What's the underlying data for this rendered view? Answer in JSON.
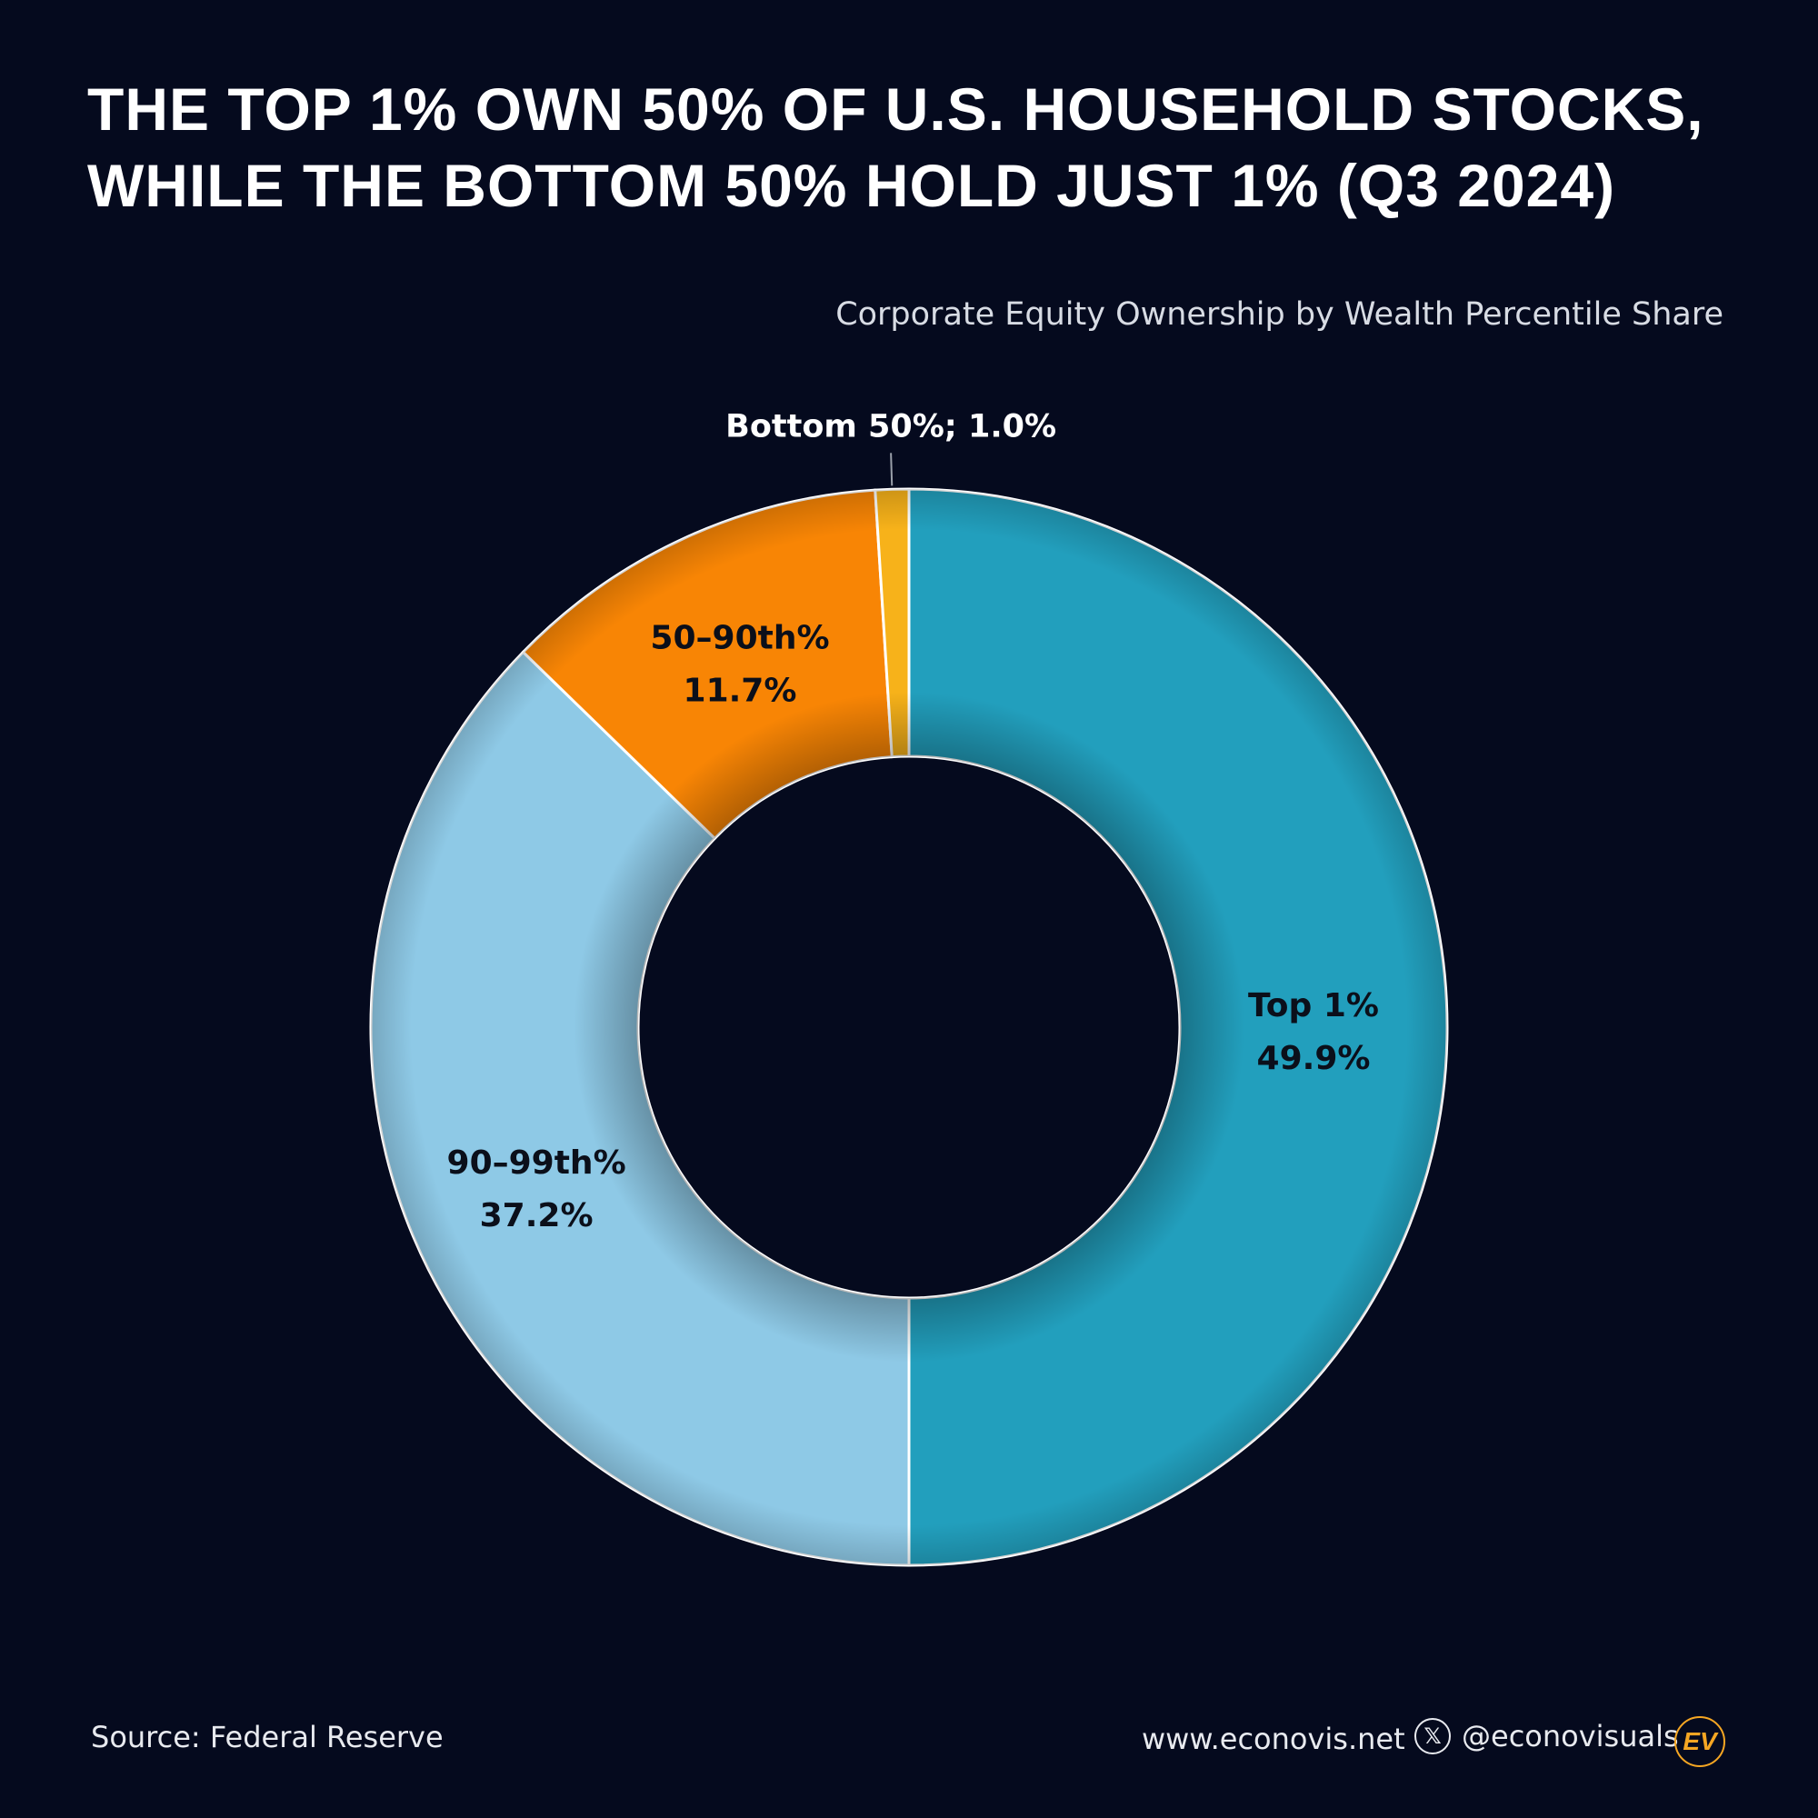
{
  "title_line1": "THE TOP 1% OWN 50% OF U.S. HOUSEHOLD STOCKS,",
  "title_line2": "WHILE THE BOTTOM 50% HOLD JUST 1% (Q3 2024)",
  "subtitle": "Corporate Equity Ownership by Wealth Percentile Share",
  "footer": {
    "source": "Source: Federal Reserve",
    "website": "www.econovis.net",
    "handle": "@econovisuals",
    "x_icon": "x-logo-icon",
    "logo_text": "EV"
  },
  "chart_data": {
    "type": "pie",
    "donut": true,
    "start": "12 o'clock",
    "direction": "clockwise",
    "unit": "%",
    "slices": [
      {
        "label": "Top 1%",
        "value": 49.9,
        "value_label": "49.9%",
        "color": "#229fbd"
      },
      {
        "label": "90–99th%",
        "value": 37.2,
        "value_label": "37.2%",
        "color": "#8ec9e6"
      },
      {
        "label": "50–90th%",
        "value": 11.7,
        "value_label": "11.7%",
        "color": "#f88505"
      },
      {
        "label": "Bottom 50%",
        "value": 1.0,
        "value_label": "1.0%",
        "color": "#f7b21a",
        "callout": "Bottom 50%; 1.0%"
      }
    ],
    "border_color": "#ffffff"
  }
}
